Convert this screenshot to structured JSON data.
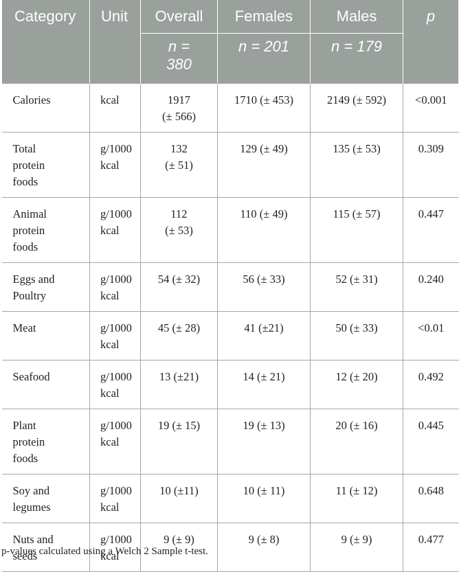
{
  "table": {
    "headers": [
      "Category",
      "Unit",
      "Overall",
      "Females",
      "Males",
      "p"
    ],
    "subheaders": {
      "overall_line1": "n =",
      "overall_line2": "380",
      "females": "n = 201",
      "males": "n = 179"
    },
    "rows": [
      {
        "category": [
          "Calories"
        ],
        "unit": [
          "kcal"
        ],
        "overall": [
          "1917",
          "(± 566)"
        ],
        "females": [
          "1710 (± 453)"
        ],
        "males": [
          "2149 (± 592)"
        ],
        "p": "<0.001"
      },
      {
        "category": [
          "Total",
          "protein",
          "foods"
        ],
        "unit": [
          "g/1000",
          "kcal"
        ],
        "overall": [
          "132",
          "(± 51)"
        ],
        "females": [
          "129 (± 49)"
        ],
        "males": [
          "135 (± 53)"
        ],
        "p": "0.309"
      },
      {
        "category": [
          "Animal",
          "protein",
          "foods"
        ],
        "unit": [
          "g/1000",
          "kcal"
        ],
        "overall": [
          "112",
          "(± 53)"
        ],
        "females": [
          "110 (± 49)"
        ],
        "males": [
          "115 (± 57)"
        ],
        "p": "0.447"
      },
      {
        "category": [
          "Eggs and",
          "Poultry"
        ],
        "unit": [
          "g/1000",
          "kcal"
        ],
        "overall": [
          "54 (± 32)"
        ],
        "females": [
          "56 (± 33)"
        ],
        "males": [
          "52 (± 31)"
        ],
        "p": "0.240"
      },
      {
        "category": [
          "Meat"
        ],
        "unit": [
          "g/1000",
          "kcal"
        ],
        "overall": [
          "45 (± 28)"
        ],
        "females": [
          "41 (±21)"
        ],
        "males": [
          "50 (± 33)"
        ],
        "p": "<0.01"
      },
      {
        "category": [
          "Seafood"
        ],
        "unit": [
          "g/1000",
          "kcal"
        ],
        "overall": [
          "13 (±21)"
        ],
        "females": [
          "14 (± 21)"
        ],
        "males": [
          "12 (± 20)"
        ],
        "p": "0.492"
      },
      {
        "category": [
          "Plant",
          "protein",
          "foods"
        ],
        "unit": [
          "g/1000",
          "kcal"
        ],
        "overall": [
          "19 (± 15)"
        ],
        "females": [
          "19 (± 13)"
        ],
        "males": [
          "20 (± 16)"
        ],
        "p": "0.445"
      },
      {
        "category": [
          "Soy and",
          "legumes"
        ],
        "unit": [
          "g/1000",
          "kcal"
        ],
        "overall": [
          "10 (±11)"
        ],
        "females": [
          "10 (± 11)"
        ],
        "males": [
          "11 (± 12)"
        ],
        "p": "0.648"
      },
      {
        "category": [
          "Nuts and",
          "seeds"
        ],
        "unit": [
          "g/1000",
          "kcal"
        ],
        "overall": [
          "9 (± 9)"
        ],
        "females": [
          "9 (± 8)"
        ],
        "males": [
          "9 (± 9)"
        ],
        "p": "0.477"
      }
    ]
  },
  "footnote": "p-values calculated using a Welch 2 Sample t-test.",
  "colors": {
    "header_background": "#9aa09c",
    "header_text": "#ffffff",
    "grid_lines": "#a5a5a5",
    "body_text": "#222222"
  }
}
